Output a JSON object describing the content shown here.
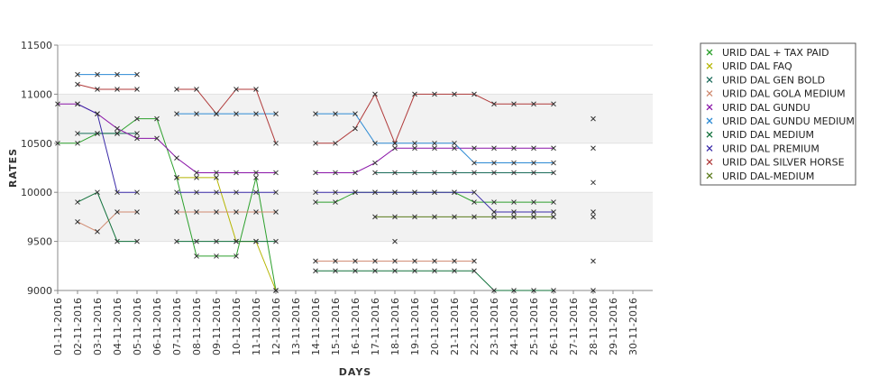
{
  "chart_data": {
    "type": "line",
    "xlabel": "DAYS",
    "ylabel": "RATES",
    "title": "",
    "ylim": [
      9000,
      11500
    ],
    "y_ticks": [
      9000,
      9500,
      10000,
      10500,
      11000,
      11500
    ],
    "grid": "alternating horizontal bands",
    "legend_position": "right",
    "categories": [
      "01-11-2016",
      "02-11-2016",
      "03-11-2016",
      "04-11-2016",
      "05-11-2016",
      "06-11-2016",
      "07-11-2016",
      "08-11-2016",
      "09-11-2016",
      "10-11-2016",
      "11-11-2016",
      "12-11-2016",
      "13-11-2016",
      "14-11-2016",
      "15-11-2016",
      "16-11-2016",
      "17-11-2016",
      "18-11-2016",
      "19-11-2016",
      "20-11-2016",
      "21-11-2016",
      "22-11-2016",
      "23-11-2016",
      "24-11-2016",
      "25-11-2016",
      "26-11-2016",
      "27-11-2016",
      "28-11-2016",
      "29-11-2016",
      "30-11-2016"
    ],
    "series": [
      {
        "name": "URID DAL + TAX PAID",
        "color": "#2ca02c",
        "values": [
          10500,
          10500,
          10600,
          10600,
          10750,
          10750,
          10150,
          9350,
          9350,
          9350,
          10150,
          9000,
          null,
          9900,
          9900,
          10000,
          10000,
          10000,
          10000,
          10000,
          10000,
          9900,
          9900,
          9900,
          9900,
          9900,
          null,
          9300,
          null,
          null
        ]
      },
      {
        "name": "URID DAL FAQ",
        "color": "#b5b500",
        "values": [
          null,
          null,
          null,
          null,
          null,
          null,
          10150,
          10150,
          10150,
          9500,
          9500,
          9000,
          null,
          null,
          null,
          null,
          null,
          9500,
          null,
          null,
          null,
          null,
          null,
          null,
          null,
          null,
          null,
          null,
          null,
          null
        ]
      },
      {
        "name": "URID DAL GEN BOLD",
        "color": "#1a6b5a",
        "values": [
          null,
          10600,
          10600,
          10600,
          10600,
          null,
          null,
          null,
          null,
          null,
          null,
          null,
          null,
          null,
          null,
          null,
          10200,
          10200,
          10200,
          10200,
          10200,
          10200,
          10200,
          10200,
          10200,
          10200,
          null,
          10100,
          null,
          null
        ]
      },
      {
        "name": "URID DAL GOLA MEDIUM",
        "color": "#d08a70",
        "values": [
          null,
          9700,
          9600,
          9800,
          9800,
          null,
          9800,
          9800,
          9800,
          9800,
          9800,
          9800,
          null,
          9300,
          9300,
          9300,
          9300,
          9300,
          9300,
          9300,
          9300,
          9300,
          null,
          null,
          null,
          null,
          null,
          null,
          null,
          null
        ]
      },
      {
        "name": "URID DAL GUNDU",
        "color": "#8a14a8",
        "values": [
          10900,
          10900,
          10800,
          10650,
          10550,
          10550,
          10350,
          10200,
          10200,
          10200,
          10200,
          10200,
          null,
          10200,
          10200,
          10200,
          10300,
          10450,
          10450,
          10450,
          10450,
          10450,
          10450,
          10450,
          10450,
          10450,
          null,
          10450,
          null,
          null
        ]
      },
      {
        "name": "URID DAL GUNDU MEDIUM",
        "color": "#2c8ad4",
        "values": [
          null,
          11200,
          11200,
          11200,
          11200,
          null,
          10800,
          10800,
          10800,
          10800,
          10800,
          10800,
          null,
          10800,
          10800,
          10800,
          10500,
          10500,
          10500,
          10500,
          10500,
          10300,
          10300,
          10300,
          10300,
          10300,
          null,
          null,
          null,
          null
        ]
      },
      {
        "name": "URID DAL MEDIUM",
        "color": "#10703a",
        "values": [
          null,
          9900,
          10000,
          9500,
          9500,
          null,
          9500,
          9500,
          9500,
          9500,
          9500,
          9500,
          null,
          9200,
          9200,
          9200,
          9200,
          9200,
          9200,
          9200,
          9200,
          9200,
          9000,
          9000,
          9000,
          9000,
          null,
          9000,
          null,
          null
        ]
      },
      {
        "name": "URID DAL PREMIUM",
        "color": "#3a2aa8",
        "values": [
          null,
          10900,
          10800,
          10000,
          10000,
          null,
          10000,
          10000,
          10000,
          10000,
          10000,
          10000,
          null,
          10000,
          10000,
          10000,
          10000,
          10000,
          10000,
          10000,
          10000,
          10000,
          9800,
          9800,
          9800,
          9800,
          null,
          9800,
          null,
          null
        ]
      },
      {
        "name": "URID DAL SILVER HORSE",
        "color": "#b03a3a",
        "values": [
          null,
          11100,
          11050,
          11050,
          11050,
          null,
          11050,
          11050,
          10800,
          11050,
          11050,
          10500,
          null,
          10500,
          10500,
          10650,
          11000,
          10500,
          11000,
          11000,
          11000,
          11000,
          10900,
          10900,
          10900,
          10900,
          null,
          10750,
          null,
          null
        ]
      },
      {
        "name": "URID DAL-MEDIUM",
        "color": "#5a7a1a",
        "values": [
          null,
          null,
          null,
          null,
          null,
          null,
          null,
          null,
          null,
          null,
          null,
          null,
          null,
          null,
          null,
          null,
          9750,
          9750,
          9750,
          9750,
          9750,
          9750,
          9750,
          9750,
          9750,
          9750,
          null,
          9750,
          null,
          null
        ]
      }
    ]
  }
}
